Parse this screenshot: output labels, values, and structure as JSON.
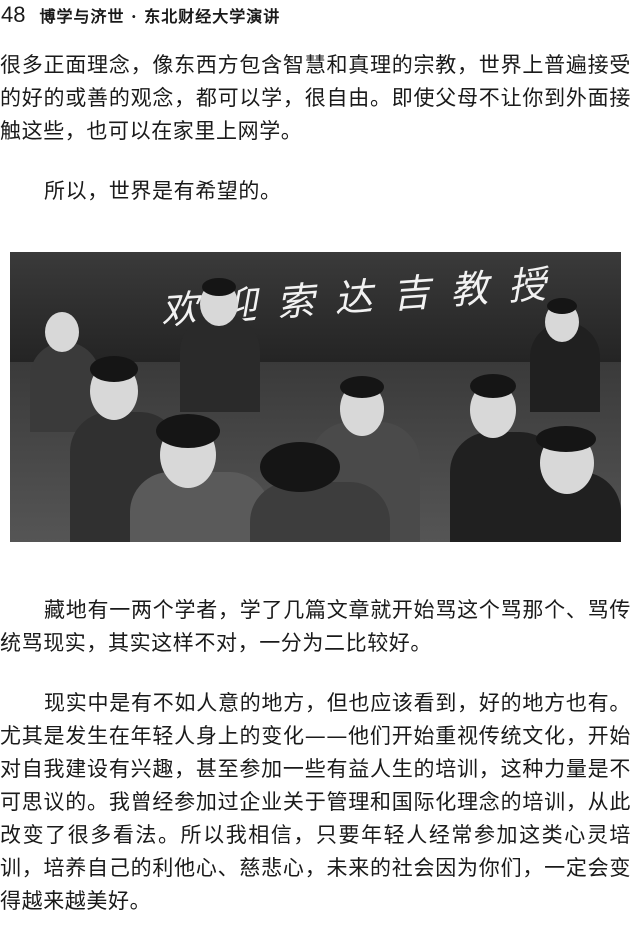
{
  "header": {
    "page_number": "48",
    "running_head": "博学与济世 · 东北财经大学演讲"
  },
  "paragraphs_top": [
    "很多正面理念，像东西方包含智慧和真理的宗教，世界上普遍接受的好的或善的观念，都可以学，很自由。即使父母不让你到外面接触这些，也可以在家里上网学。",
    "所以，世界是有希望的。"
  ],
  "photo": {
    "banner_text": "欢迎索达吉教授"
  },
  "paragraphs_bottom": [
    "藏地有一两个学者，学了几篇文章就开始骂这个骂那个、骂传统骂现实，其实这样不对，一分为二比较好。",
    "现实中是有不如人意的地方，但也应该看到，好的地方也有。尤其是发生在年轻人身上的变化——他们开始重视传统文化，开始对自我建设有兴趣，甚至参加一些有益人生的培训，这种力量是不可思议的。我曾经参加过企业关于管理和国际化理念的培训，从此改变了很多看法。所以我相信，只要年轻人经常参加这类心灵培训，培养自己的利他心、慈悲心，未来的社会因为你们，一定会变得越来越美好。"
  ]
}
